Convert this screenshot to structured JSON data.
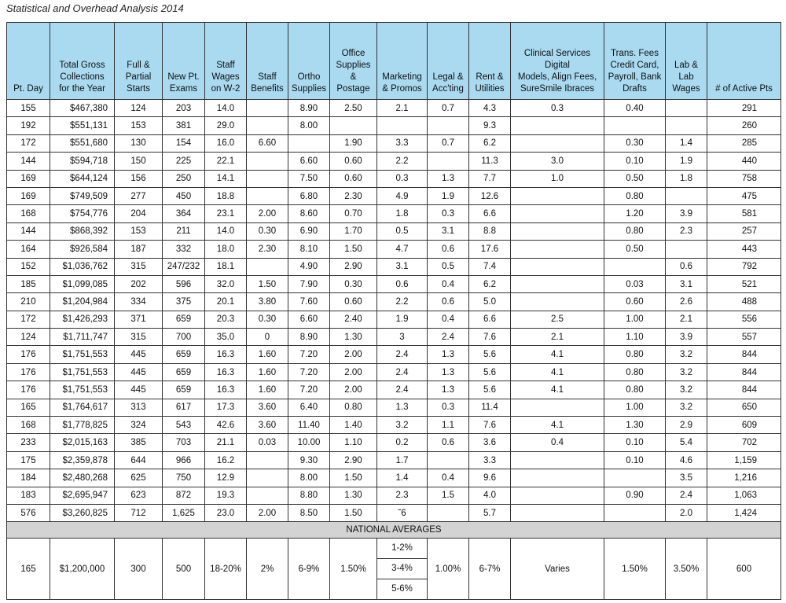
{
  "title": "Statistical and Overhead Analysis 2014",
  "table": {
    "header": [
      "Pt. Day",
      "Total Gross\nCollections\nfor the Year",
      "Full &\nPartial\nStarts",
      "New Pt.\nExams",
      "Staff\nWages\non W-2",
      "Staff\nBenefits",
      "Ortho\nSupplies",
      "Office\nSupplies &\nPostage",
      "Marketing\n& Promos",
      "Legal &\nAcc'ting",
      "Rent &\nUtilities",
      "Clinical Services Digital\nModels, Align Fees,\nSureSmile Ibraces",
      "Trans. Fees\nCredit Card,\nPayroll, Bank\nDrafts",
      "Lab &\nLab\nWages",
      "# of Active Pts"
    ],
    "rows": [
      [
        "155",
        "$467,380",
        "124",
        "203",
        "14.0",
        null,
        "8.90",
        "2.50",
        "2.1",
        "0.7",
        "4.3",
        "0.3",
        "0.40",
        null,
        "291"
      ],
      [
        "192",
        "$551,131",
        "153",
        "381",
        "29.0",
        null,
        "8.00",
        null,
        null,
        null,
        "9.3",
        null,
        null,
        null,
        "260"
      ],
      [
        "172",
        "$551,680",
        "130",
        "154",
        "16.0",
        "6.60",
        null,
        "1.90",
        "3.3",
        "0.7",
        "6.2",
        null,
        "0.30",
        "1.4",
        "285"
      ],
      [
        "144",
        "$594,718",
        "150",
        "225",
        "22.1",
        null,
        "6.60",
        "0.60",
        "2.2",
        null,
        "11.3",
        "3.0",
        "0.10",
        "1.9",
        "440"
      ],
      [
        "169",
        "$644,124",
        "156",
        "250",
        "14.1",
        null,
        "7.50",
        "0.60",
        "0.3",
        "1.3",
        "7.7",
        "1.0",
        "0.50",
        "1.8",
        "758"
      ],
      [
        "169",
        "$749,509",
        "277",
        "450",
        "18.8",
        null,
        "6.80",
        "2.30",
        "4.9",
        "1.9",
        "12.6",
        null,
        "0.80",
        null,
        "475"
      ],
      [
        "168",
        "$754,776",
        "204",
        "364",
        "23.1",
        "2.00",
        "8.60",
        "0.70",
        "1.8",
        "0.3",
        "6.6",
        null,
        "1.20",
        "3.9",
        "581"
      ],
      [
        "144",
        "$868,392",
        "153",
        "211",
        "14.0",
        "0.30",
        "6.90",
        "1.70",
        "0.5",
        "3.1",
        "8.8",
        null,
        "0.80",
        "2.3",
        "257"
      ],
      [
        "164",
        "$926,584",
        "187",
        "332",
        "18.0",
        "2.30",
        "8.10",
        "1.50",
        "4.7",
        "0.6",
        "17.6",
        null,
        "0.50",
        null,
        "443"
      ],
      [
        "152",
        "$1,036,762",
        "315",
        "247/232",
        "18.1",
        null,
        "4.90",
        "2.90",
        "3.1",
        "0.5",
        "7.4",
        null,
        null,
        "0.6",
        "792"
      ],
      [
        "185",
        "$1,099,085",
        "202",
        "596",
        "32.0",
        "1.50",
        "7.90",
        "0.30",
        "0.6",
        "0.4",
        "6.2",
        null,
        "0.03",
        "3.1",
        "521"
      ],
      [
        "210",
        "$1,204,984",
        "334",
        "375",
        "20.1",
        "3.80",
        "7.60",
        "0.60",
        "2.2",
        "0.6",
        "5.0",
        null,
        "0.60",
        "2.6",
        "488"
      ],
      [
        "172",
        "$1,426,293",
        "371",
        "659",
        "20.3",
        "0.30",
        "6.60",
        "2.40",
        "1.9",
        "0.4",
        "6.6",
        "2.5",
        "1.00",
        "2.1",
        "556"
      ],
      [
        "124",
        "$1,711,747",
        "315",
        "700",
        "35.0",
        "0",
        "8.90",
        "1.30",
        "3",
        "2.4",
        "7.6",
        "2.1",
        "1.10",
        "3.9",
        "557"
      ],
      [
        "176",
        "$1,751,553",
        "445",
        "659",
        "16.3",
        "1.60",
        "7.20",
        "2.00",
        "2.4",
        "1.3",
        "5.6",
        "4.1",
        "0.80",
        "3.2",
        "844"
      ],
      [
        "176",
        "$1,751,553",
        "445",
        "659",
        "16.3",
        "1.60",
        "7.20",
        "2.00",
        "2.4",
        "1.3",
        "5.6",
        "4.1",
        "0.80",
        "3.2",
        "844"
      ],
      [
        "176",
        "$1,751,553",
        "445",
        "659",
        "16.3",
        "1.60",
        "7.20",
        "2.00",
        "2.4",
        "1.3",
        "5.6",
        "4.1",
        "0.80",
        "3.2",
        "844"
      ],
      [
        "165",
        "$1,764,617",
        "313",
        "617",
        "17.3",
        "3.60",
        "6.40",
        "0.80",
        "1.3",
        "0.3",
        "11.4",
        null,
        "1.00",
        "3.2",
        "650"
      ],
      [
        "168",
        "$1,778,825",
        "324",
        "543",
        "42.6",
        "3.60",
        "11.40",
        "1.40",
        "3.2",
        "1.1",
        "7.6",
        "4.1",
        "1.30",
        "2.9",
        "609"
      ],
      [
        "233",
        "$2,015,163",
        "385",
        "703",
        "21.1",
        "0.03",
        "10.00",
        "1.10",
        "0.2",
        "0.6",
        "3.6",
        "0.4",
        "0.10",
        "5.4",
        "702"
      ],
      [
        "175",
        "$2,359,878",
        "644",
        "966",
        "16.2",
        null,
        "9.30",
        "2.90",
        "1.7",
        null,
        "3.3",
        null,
        "0.10",
        "4.6",
        "1,159"
      ],
      [
        "184",
        "$2,480,268",
        "625",
        "750",
        "12.9",
        null,
        "8.00",
        "1.50",
        "1.4",
        "0.4",
        "9.6",
        null,
        null,
        "3.5",
        "1,216"
      ],
      [
        "183",
        "$2,695,947",
        "623",
        "872",
        "19.3",
        null,
        "8.80",
        "1.30",
        "2.3",
        "1.5",
        "4.0",
        null,
        "0.90",
        "2.4",
        "1,063"
      ],
      [
        "576",
        "$3,260,825",
        "712",
        "1,625",
        "23.0",
        "2.00",
        "8.50",
        "1.50",
        "˜6",
        null,
        "5.7",
        null,
        null,
        "2.0",
        "1,424"
      ]
    ],
    "section_label": "NATIONAL AVERAGES",
    "averages": [
      "165",
      "$1,200,000",
      "300",
      "500",
      "18-20%",
      "2%",
      "6-9%",
      "1.50%",
      [
        "1-2%",
        "3-4%",
        "5-6%"
      ],
      "1.00%",
      "6-7%",
      "Varies",
      "1.50%",
      "3.50%",
      "600"
    ]
  }
}
